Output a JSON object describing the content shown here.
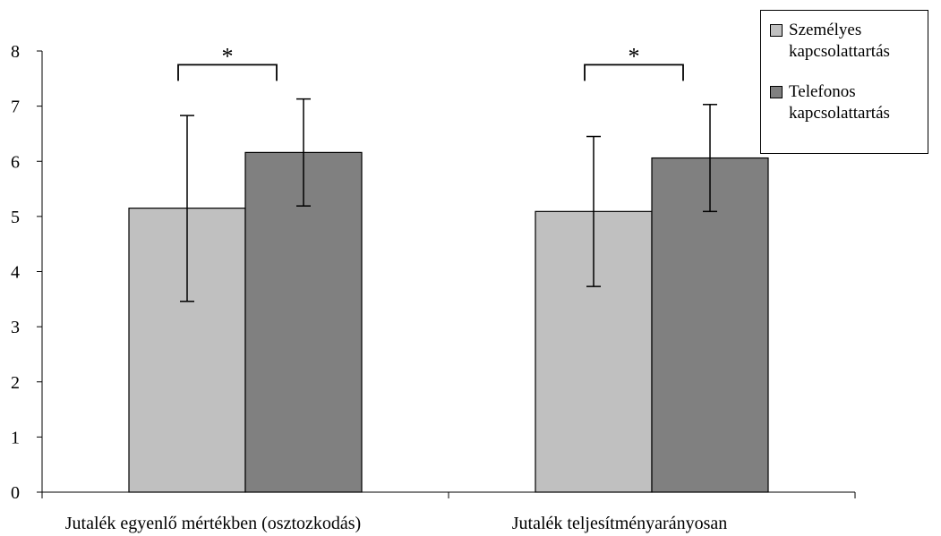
{
  "chart_data": {
    "type": "bar",
    "categories": [
      "Jutalék egyenlő mértékben (osztozkodás)",
      "Jutalék teljesítményarányosan"
    ],
    "series": [
      {
        "name": "Személyes kapcsolattartás",
        "legend_lines": [
          "Személyes",
          "kapcsolattartás"
        ],
        "color": "#c0c0c0",
        "values": [
          5.15,
          5.09
        ],
        "err_low": [
          3.46,
          3.73
        ],
        "err_high": [
          6.83,
          6.45
        ]
      },
      {
        "name": "Telefonos kapcsolattartás",
        "legend_lines": [
          "Telefonos",
          "kapcsolattartás"
        ],
        "color": "#808080",
        "values": [
          6.16,
          6.06
        ],
        "err_low": [
          5.19,
          5.09
        ],
        "err_high": [
          7.13,
          7.03
        ]
      }
    ],
    "ylim": [
      0,
      8
    ],
    "yticks": [
      "0",
      "1",
      "2",
      "3",
      "4",
      "5",
      "6",
      "7",
      "8"
    ],
    "significance": [
      "*",
      "*"
    ],
    "legend_position": "top-right",
    "grid": false
  }
}
